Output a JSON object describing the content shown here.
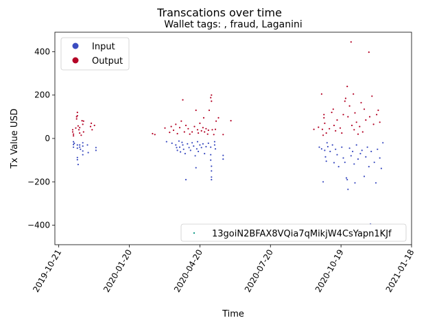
{
  "chart_data": {
    "type": "scatter",
    "title": "Transcations over time",
    "subtitle": "Wallet tags: , fraud, Laganini",
    "xlabel": "Time",
    "ylabel": "Tx Value USD",
    "x_is_date": true,
    "xlim": [
      "2019-10-16",
      "2021-01-18"
    ],
    "ylim": [
      -490,
      490
    ],
    "x_ticks": [
      "2019-10-21",
      "2020-01-20",
      "2020-04-20",
      "2020-07-20",
      "2020-10-19",
      "2021-01-18"
    ],
    "y_ticks": [
      -400,
      -200,
      0,
      200,
      400
    ],
    "grid": false,
    "legend_placement": "upper-left",
    "legend": [
      {
        "name": "Input",
        "color": "#3b4cc0"
      },
      {
        "name": "Output",
        "color": "#b40426"
      }
    ],
    "wallet_legend": {
      "name": "13goiN2BFAX8VQia7qMikjW4CsYapn1KJf",
      "color": "#1a9e8a",
      "placement": "lower-right"
    },
    "series": [
      {
        "name": "Input",
        "color": "#3b4cc0",
        "points": [
          [
            "2019-11-09",
            -15
          ],
          [
            "2019-11-09",
            -28
          ],
          [
            "2019-11-09",
            -40
          ],
          [
            "2019-11-10",
            -22
          ],
          [
            "2019-11-14",
            -30
          ],
          [
            "2019-11-14",
            -45
          ],
          [
            "2019-11-14",
            -88
          ],
          [
            "2019-11-14",
            -98
          ],
          [
            "2019-11-15",
            -120
          ],
          [
            "2019-11-17",
            -30
          ],
          [
            "2019-11-17",
            -40
          ],
          [
            "2019-11-18",
            -50
          ],
          [
            "2019-11-21",
            -20
          ],
          [
            "2019-11-21",
            -35
          ],
          [
            "2019-11-21",
            -58
          ],
          [
            "2019-11-21",
            -75
          ],
          [
            "2019-11-27",
            -30
          ],
          [
            "2019-11-28",
            -65
          ],
          [
            "2019-12-08",
            -42
          ],
          [
            "2019-12-08",
            -55
          ],
          [
            "2020-03-08",
            -15
          ],
          [
            "2020-03-15",
            -22
          ],
          [
            "2020-03-20",
            -30
          ],
          [
            "2020-03-21",
            -42
          ],
          [
            "2020-03-22",
            -55
          ],
          [
            "2020-03-24",
            -12
          ],
          [
            "2020-03-25",
            -40
          ],
          [
            "2020-03-26",
            -62
          ],
          [
            "2020-03-28",
            -18
          ],
          [
            "2020-03-29",
            -30
          ],
          [
            "2020-03-30",
            -50
          ],
          [
            "2020-04-01",
            -70
          ],
          [
            "2020-04-02",
            -190
          ],
          [
            "2020-04-04",
            -25
          ],
          [
            "2020-04-06",
            -42
          ],
          [
            "2020-04-08",
            -55
          ],
          [
            "2020-04-10",
            -20
          ],
          [
            "2020-04-12",
            -35
          ],
          [
            "2020-04-14",
            -80
          ],
          [
            "2020-04-15",
            -135
          ],
          [
            "2020-04-16",
            -48
          ],
          [
            "2020-04-17",
            -15
          ],
          [
            "2020-04-18",
            -60
          ],
          [
            "2020-04-20",
            -30
          ],
          [
            "2020-04-22",
            -42
          ],
          [
            "2020-04-24",
            -25
          ],
          [
            "2020-04-26",
            -70
          ],
          [
            "2020-04-28",
            -38
          ],
          [
            "2020-05-01",
            -22
          ],
          [
            "2020-05-04",
            -40
          ],
          [
            "2020-05-04",
            -75
          ],
          [
            "2020-05-04",
            -100
          ],
          [
            "2020-05-05",
            -128
          ],
          [
            "2020-05-05",
            -150
          ],
          [
            "2020-05-05",
            -178
          ],
          [
            "2020-05-05",
            -190
          ],
          [
            "2020-05-09",
            -15
          ],
          [
            "2020-05-09",
            -30
          ],
          [
            "2020-05-10",
            -48
          ],
          [
            "2020-05-20",
            -78
          ],
          [
            "2020-05-20",
            -95
          ],
          [
            "2020-09-21",
            -40
          ],
          [
            "2020-09-24",
            -48
          ],
          [
            "2020-09-26",
            -200
          ],
          [
            "2020-09-28",
            -55
          ],
          [
            "2020-09-29",
            -85
          ],
          [
            "2020-09-30",
            -105
          ],
          [
            "2020-10-01",
            -20
          ],
          [
            "2020-10-02",
            -38
          ],
          [
            "2020-10-05",
            -60
          ],
          [
            "2020-10-08",
            -30
          ],
          [
            "2020-10-10",
            -112
          ],
          [
            "2020-10-12",
            -50
          ],
          [
            "2020-10-14",
            -75
          ],
          [
            "2020-10-16",
            -130
          ],
          [
            "2020-10-20",
            -40
          ],
          [
            "2020-10-22",
            -90
          ],
          [
            "2020-10-24",
            -110
          ],
          [
            "2020-10-26",
            -182
          ],
          [
            "2020-10-27",
            -190
          ],
          [
            "2020-10-28",
            -235
          ],
          [
            "2020-10-30",
            -45
          ],
          [
            "2020-11-01",
            -80
          ],
          [
            "2020-11-03",
            -60
          ],
          [
            "2020-11-05",
            -118
          ],
          [
            "2020-11-06",
            -205
          ],
          [
            "2020-11-08",
            -30
          ],
          [
            "2020-11-10",
            -95
          ],
          [
            "2020-11-13",
            -70
          ],
          [
            "2020-11-15",
            -55
          ],
          [
            "2020-11-18",
            -175
          ],
          [
            "2020-11-20",
            -85
          ],
          [
            "2020-11-22",
            -40
          ],
          [
            "2020-11-24",
            -130
          ],
          [
            "2020-11-27",
            -60
          ],
          [
            "2020-12-01",
            -110
          ],
          [
            "2020-12-03",
            -205
          ],
          [
            "2020-12-05",
            -50
          ],
          [
            "2020-12-08",
            -90
          ],
          [
            "2020-12-10",
            -138
          ],
          [
            "2020-12-12",
            -20
          ],
          [
            "2020-11-26",
            -395
          ]
        ]
      },
      {
        "name": "Output",
        "color": "#b40426",
        "points": [
          [
            "2019-11-08",
            40
          ],
          [
            "2019-11-08",
            30
          ],
          [
            "2019-11-09",
            20
          ],
          [
            "2019-11-09",
            12
          ],
          [
            "2019-11-12",
            48
          ],
          [
            "2019-11-13",
            100
          ],
          [
            "2019-11-13",
            90
          ],
          [
            "2019-11-14",
            120
          ],
          [
            "2019-11-14",
            105
          ],
          [
            "2019-11-15",
            58
          ],
          [
            "2019-11-16",
            40
          ],
          [
            "2019-11-17",
            25
          ],
          [
            "2019-11-17",
            50
          ],
          [
            "2019-11-19",
            15
          ],
          [
            "2019-11-20",
            82
          ],
          [
            "2019-11-21",
            65
          ],
          [
            "2019-11-22",
            30
          ],
          [
            "2019-11-22",
            80
          ],
          [
            "2019-12-01",
            55
          ],
          [
            "2019-12-02",
            70
          ],
          [
            "2019-12-03",
            40
          ],
          [
            "2019-12-06",
            60
          ],
          [
            "2020-02-19",
            22
          ],
          [
            "2020-02-22",
            18
          ],
          [
            "2020-03-06",
            48
          ],
          [
            "2020-03-12",
            28
          ],
          [
            "2020-03-14",
            55
          ],
          [
            "2020-03-17",
            38
          ],
          [
            "2020-03-20",
            65
          ],
          [
            "2020-03-22",
            22
          ],
          [
            "2020-03-25",
            50
          ],
          [
            "2020-03-27",
            80
          ],
          [
            "2020-03-29",
            178
          ],
          [
            "2020-03-31",
            30
          ],
          [
            "2020-04-02",
            60
          ],
          [
            "2020-04-05",
            45
          ],
          [
            "2020-04-07",
            20
          ],
          [
            "2020-04-10",
            30
          ],
          [
            "2020-04-13",
            55
          ],
          [
            "2020-04-15",
            130
          ],
          [
            "2020-04-17",
            40
          ],
          [
            "2020-04-18",
            25
          ],
          [
            "2020-04-20",
            70
          ],
          [
            "2020-04-22",
            35
          ],
          [
            "2020-04-24",
            50
          ],
          [
            "2020-04-25",
            95
          ],
          [
            "2020-04-26",
            30
          ],
          [
            "2020-04-28",
            45
          ],
          [
            "2020-04-30",
            20
          ],
          [
            "2020-05-01",
            38
          ],
          [
            "2020-05-02",
            130
          ],
          [
            "2020-05-04",
            188
          ],
          [
            "2020-05-05",
            200
          ],
          [
            "2020-05-05",
            172
          ],
          [
            "2020-05-06",
            40
          ],
          [
            "2020-05-08",
            18
          ],
          [
            "2020-05-10",
            42
          ],
          [
            "2020-05-11",
            80
          ],
          [
            "2020-05-14",
            95
          ],
          [
            "2020-05-20",
            18
          ],
          [
            "2020-05-30",
            82
          ],
          [
            "2020-09-14",
            42
          ],
          [
            "2020-09-20",
            52
          ],
          [
            "2020-09-24",
            205
          ],
          [
            "2020-09-25",
            42
          ],
          [
            "2020-09-26",
            15
          ],
          [
            "2020-09-27",
            95
          ],
          [
            "2020-09-27",
            110
          ],
          [
            "2020-09-28",
            70
          ],
          [
            "2020-09-30",
            25
          ],
          [
            "2020-10-04",
            45
          ],
          [
            "2020-10-07",
            120
          ],
          [
            "2020-10-09",
            135
          ],
          [
            "2020-10-10",
            60
          ],
          [
            "2020-10-12",
            35
          ],
          [
            "2020-10-14",
            85
          ],
          [
            "2020-10-18",
            48
          ],
          [
            "2020-10-22",
            110
          ],
          [
            "2020-10-24",
            172
          ],
          [
            "2020-10-25",
            185
          ],
          [
            "2020-10-27",
            240
          ],
          [
            "2020-10-28",
            100
          ],
          [
            "2020-10-30",
            150
          ],
          [
            "2020-11-01",
            445
          ],
          [
            "2020-11-02",
            60
          ],
          [
            "2020-11-04",
            205
          ],
          [
            "2020-11-05",
            40
          ],
          [
            "2020-11-06",
            118
          ],
          [
            "2020-11-08",
            75
          ],
          [
            "2020-11-12",
            55
          ],
          [
            "2020-11-14",
            165
          ],
          [
            "2020-11-16",
            30
          ],
          [
            "2020-11-18",
            135
          ],
          [
            "2020-11-20",
            85
          ],
          [
            "2020-11-24",
            398
          ],
          [
            "2020-11-25",
            100
          ],
          [
            "2020-11-28",
            195
          ],
          [
            "2020-11-30",
            65
          ],
          [
            "2020-12-04",
            110
          ],
          [
            "2020-12-06",
            130
          ],
          [
            "2020-12-08",
            75
          ],
          [
            "2020-11-10",
            20
          ],
          [
            "2020-10-20",
            25
          ]
        ]
      }
    ]
  }
}
